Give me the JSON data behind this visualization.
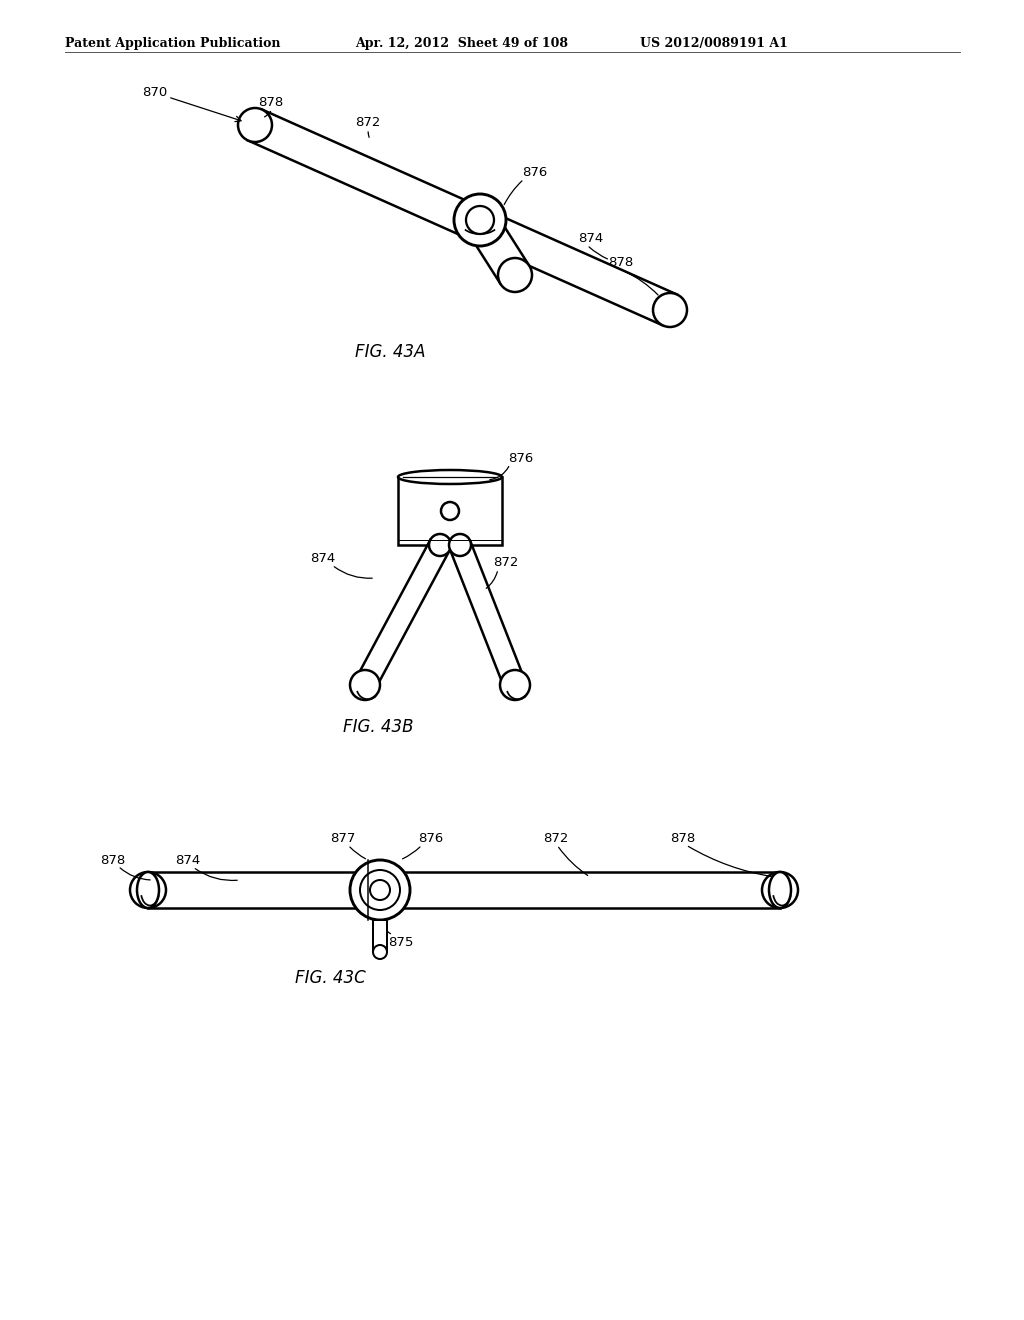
{
  "background_color": "#ffffff",
  "header_left": "Patent Application Publication",
  "header_mid": "Apr. 12, 2012  Sheet 49 of 108",
  "header_right": "US 2012/0089191 A1",
  "fig43a_label": "FIG. 43A",
  "fig43b_label": "FIG. 43B",
  "fig43c_label": "FIG. 43C",
  "text_color": "#000000",
  "line_color": "#000000",
  "line_width": 1.8,
  "label_fontsize": 9.5,
  "header_fontsize": 9,
  "fig_label_fontsize": 12
}
